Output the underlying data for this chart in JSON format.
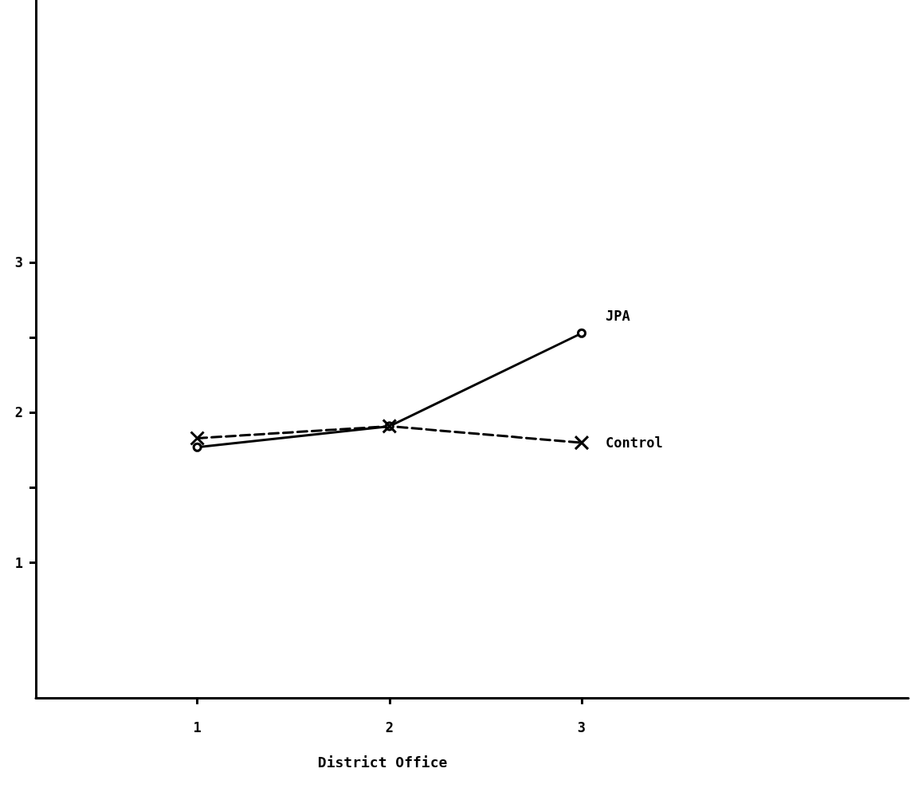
{
  "chart_data": {
    "type": "line",
    "xlabel": "District Office",
    "x": [
      1,
      2,
      3
    ],
    "xlim": [
      0.16,
      4.7
    ],
    "xticks": [
      1,
      2,
      3
    ],
    "ylim": [
      0.1,
      4.75
    ],
    "yticks": [
      1,
      {
        "value": 1.5,
        "label": null
      },
      2,
      {
        "value": 2.5,
        "label": null
      },
      3
    ],
    "series": [
      {
        "name": "JPA",
        "color": "#000000",
        "values": [
          1.77,
          1.91,
          2.53
        ],
        "marker": "circle",
        "line_style": "solid"
      },
      {
        "name": "Control",
        "color": "#000000",
        "values": [
          1.83,
          1.91,
          1.8
        ],
        "marker": "cross",
        "line_style": "dashed"
      }
    ],
    "grid": false,
    "legend": false
  }
}
